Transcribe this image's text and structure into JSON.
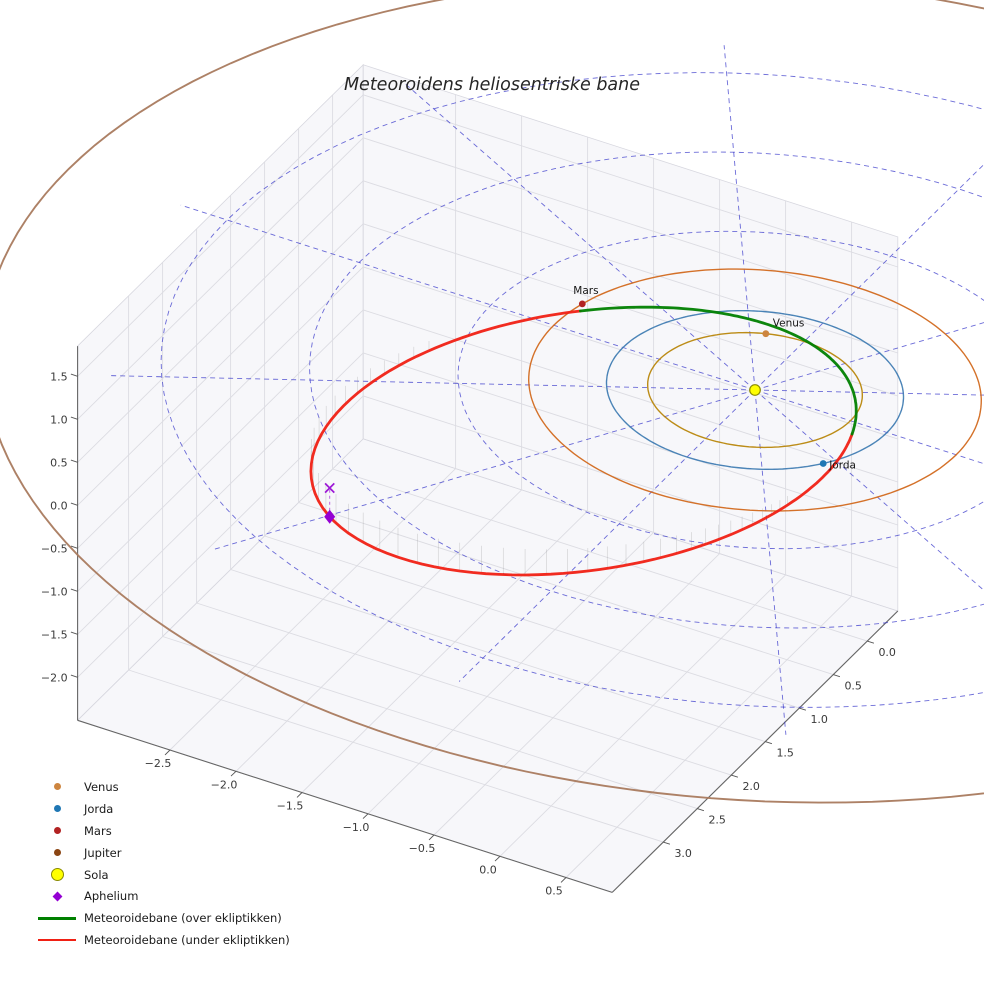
{
  "chart_data": {
    "type": "line",
    "title": "Meteoroidens heliosentriske bane",
    "axes": {
      "x": {
        "ticks": [
          "−2.5",
          "−2.0",
          "−1.5",
          "−1.0",
          "−0.5",
          "0.0",
          "0.5"
        ],
        "range": [
          -3.2,
          0.85
        ]
      },
      "y": {
        "ticks": [
          "0.0",
          "0.5",
          "1.0",
          "1.5",
          "2.0",
          "2.5",
          "3.0"
        ],
        "range": [
          -0.45,
          3.75
        ]
      },
      "z": {
        "ticks": [
          "−2.0",
          "−1.5",
          "−1.0",
          "−0.5",
          "0.0",
          "0.5",
          "1.0",
          "1.5"
        ],
        "range": [
          -2.5,
          1.85
        ]
      }
    },
    "projection": {
      "origin": [
        755,
        390
      ],
      "bx": [
        132,
        42.5
      ],
      "by": [
        -68,
        67
      ],
      "bz": [
        0,
        -86
      ]
    },
    "style": {
      "pane_fill": "#f0f0f5",
      "pane_edge": "#d7d7df",
      "grid_color": "#dcdce2",
      "axis_line_color": "#666666",
      "tick_color": "#555555",
      "tick_label_color": "#3a3a3a",
      "polar_grid_color": "#2d2dc8",
      "background": "#ffffff"
    },
    "polar_grid": {
      "circle_radii": [
        1,
        2,
        3,
        4
      ],
      "spoke_count": 12,
      "spoke_radius": 4.35
    },
    "sun": {
      "name": "Sola",
      "color": "#ffff00",
      "edge_color": "#8a8a00"
    },
    "planet_orbits": [
      {
        "name": "Venus",
        "radius_au": 0.723,
        "color": "#b8860b",
        "width": 1.4
      },
      {
        "name": "Jorda",
        "radius_au": 1.0,
        "color": "#4682b4",
        "width": 1.4
      },
      {
        "name": "Mars",
        "radius_au": 1.524,
        "color": "#d2691e",
        "width": 1.4
      },
      {
        "name": "Jupiter",
        "radius_au": 5.2,
        "color": "#a97a5e",
        "width": 1.9
      }
    ],
    "planet_markers": [
      {
        "name": "Venus",
        "angle_deg": 248.5,
        "radius_au": 0.723,
        "color": "#cd853f",
        "label_offset": [
          7,
          -7
        ]
      },
      {
        "name": "Jorda",
        "angle_deg": 35.4,
        "radius_au": 1.0,
        "color": "#1f77b4",
        "label_offset": [
          6,
          5
        ]
      },
      {
        "name": "Mars",
        "angle_deg": 193.0,
        "radius_au": 1.524,
        "color": "#b22222",
        "label_offset": [
          -9,
          -10
        ]
      }
    ],
    "meteoroid_orbit": {
      "a_au": 1.94,
      "e": 0.675,
      "inclination_deg": 6.5,
      "ascending_node_deg": 190,
      "arg_perihelion_deg": 115,
      "above_color": "#008000",
      "below_color": "#f02014",
      "width": 2.8,
      "above_label": "Meteoroidebane (over ekliptikken)",
      "below_label": "Meteoroidebane (under ekliptikken)",
      "stem_color": "#909090"
    },
    "aphelium": {
      "label": "Aphelium",
      "color": "#9400d3"
    }
  },
  "legend": {
    "entries": [
      {
        "label": "Venus",
        "type": "dot",
        "color": "#cd853f",
        "size": 7
      },
      {
        "label": "Jorda",
        "type": "dot",
        "color": "#1f77b4",
        "size": 7
      },
      {
        "label": "Mars",
        "type": "dot",
        "color": "#b22222",
        "size": 7
      },
      {
        "label": "Jupiter",
        "type": "dot",
        "color": "#8b4513",
        "size": 7
      },
      {
        "label": "Sola",
        "type": "dot",
        "color": "#ffff00",
        "edge": "#8a8a00",
        "size": 11
      },
      {
        "label": "Aphelium",
        "type": "diamond",
        "color": "#9400d3",
        "size": 7
      },
      {
        "label": "Meteoroidebane (over ekliptikken)",
        "type": "line",
        "color": "#008000"
      },
      {
        "label": "Meteoroidebane (under ekliptikken)",
        "type": "line",
        "color": "#f02014"
      }
    ]
  }
}
